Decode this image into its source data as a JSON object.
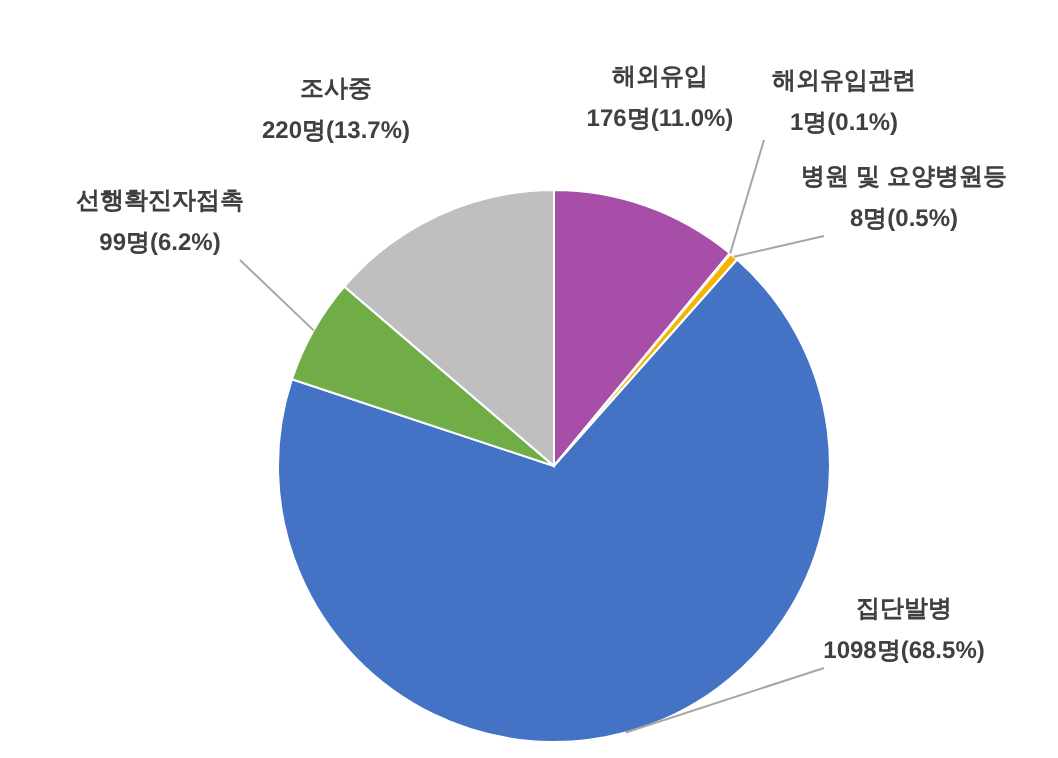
{
  "chart_data": {
    "type": "pie",
    "categories": [
      "해외유입",
      "해외유입관련",
      "병원 및 요양병원등",
      "집단발병",
      "선행확진자접촉",
      "조사중"
    ],
    "values": [
      176,
      1,
      8,
      1098,
      99,
      220
    ],
    "value_labels": [
      "176명(11.0%)",
      "1명(0.1%)",
      "8명(0.5%)",
      "1098명(68.5%)",
      "99명(6.2%)",
      "220명(13.7%)"
    ],
    "colors": [
      "#a64ea8",
      "#ffc000",
      "#f4b400",
      "#4472c4",
      "#70ad47",
      "#bfbfbf"
    ],
    "legend": false
  }
}
